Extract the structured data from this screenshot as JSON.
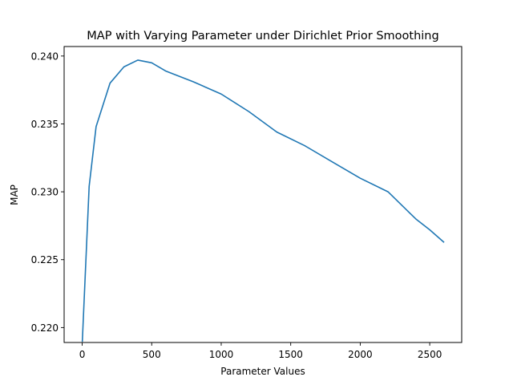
{
  "chart_data": {
    "type": "line",
    "title": "MAP with Varying Parameter under Dirichlet Prior Smoothing",
    "xlabel": "Parameter Values",
    "ylabel": "MAP",
    "xlim": [
      -130,
      2730
    ],
    "ylim": [
      0.2189,
      0.2407
    ],
    "xticks": [
      0,
      500,
      1000,
      1500,
      2000,
      2500
    ],
    "xtick_labels": [
      "0",
      "500",
      "1000",
      "1500",
      "2000",
      "2500"
    ],
    "yticks": [
      0.22,
      0.225,
      0.23,
      0.235,
      0.24
    ],
    "ytick_labels": [
      "0.220",
      "0.225",
      "0.230",
      "0.235",
      "0.240"
    ],
    "grid": false,
    "series": [
      {
        "color": "#1f77b4",
        "x": [
          1,
          50,
          100,
          200,
          300,
          400,
          500,
          600,
          800,
          1000,
          1200,
          1400,
          1600,
          1800,
          2000,
          2200,
          2400,
          2500,
          2600
        ],
        "y": [
          0.219,
          0.2304,
          0.2348,
          0.238,
          0.2392,
          0.2397,
          0.2395,
          0.2389,
          0.2381,
          0.2372,
          0.2359,
          0.2344,
          0.2334,
          0.2322,
          0.231,
          0.23,
          0.228,
          0.2272,
          0.2263
        ]
      }
    ]
  }
}
